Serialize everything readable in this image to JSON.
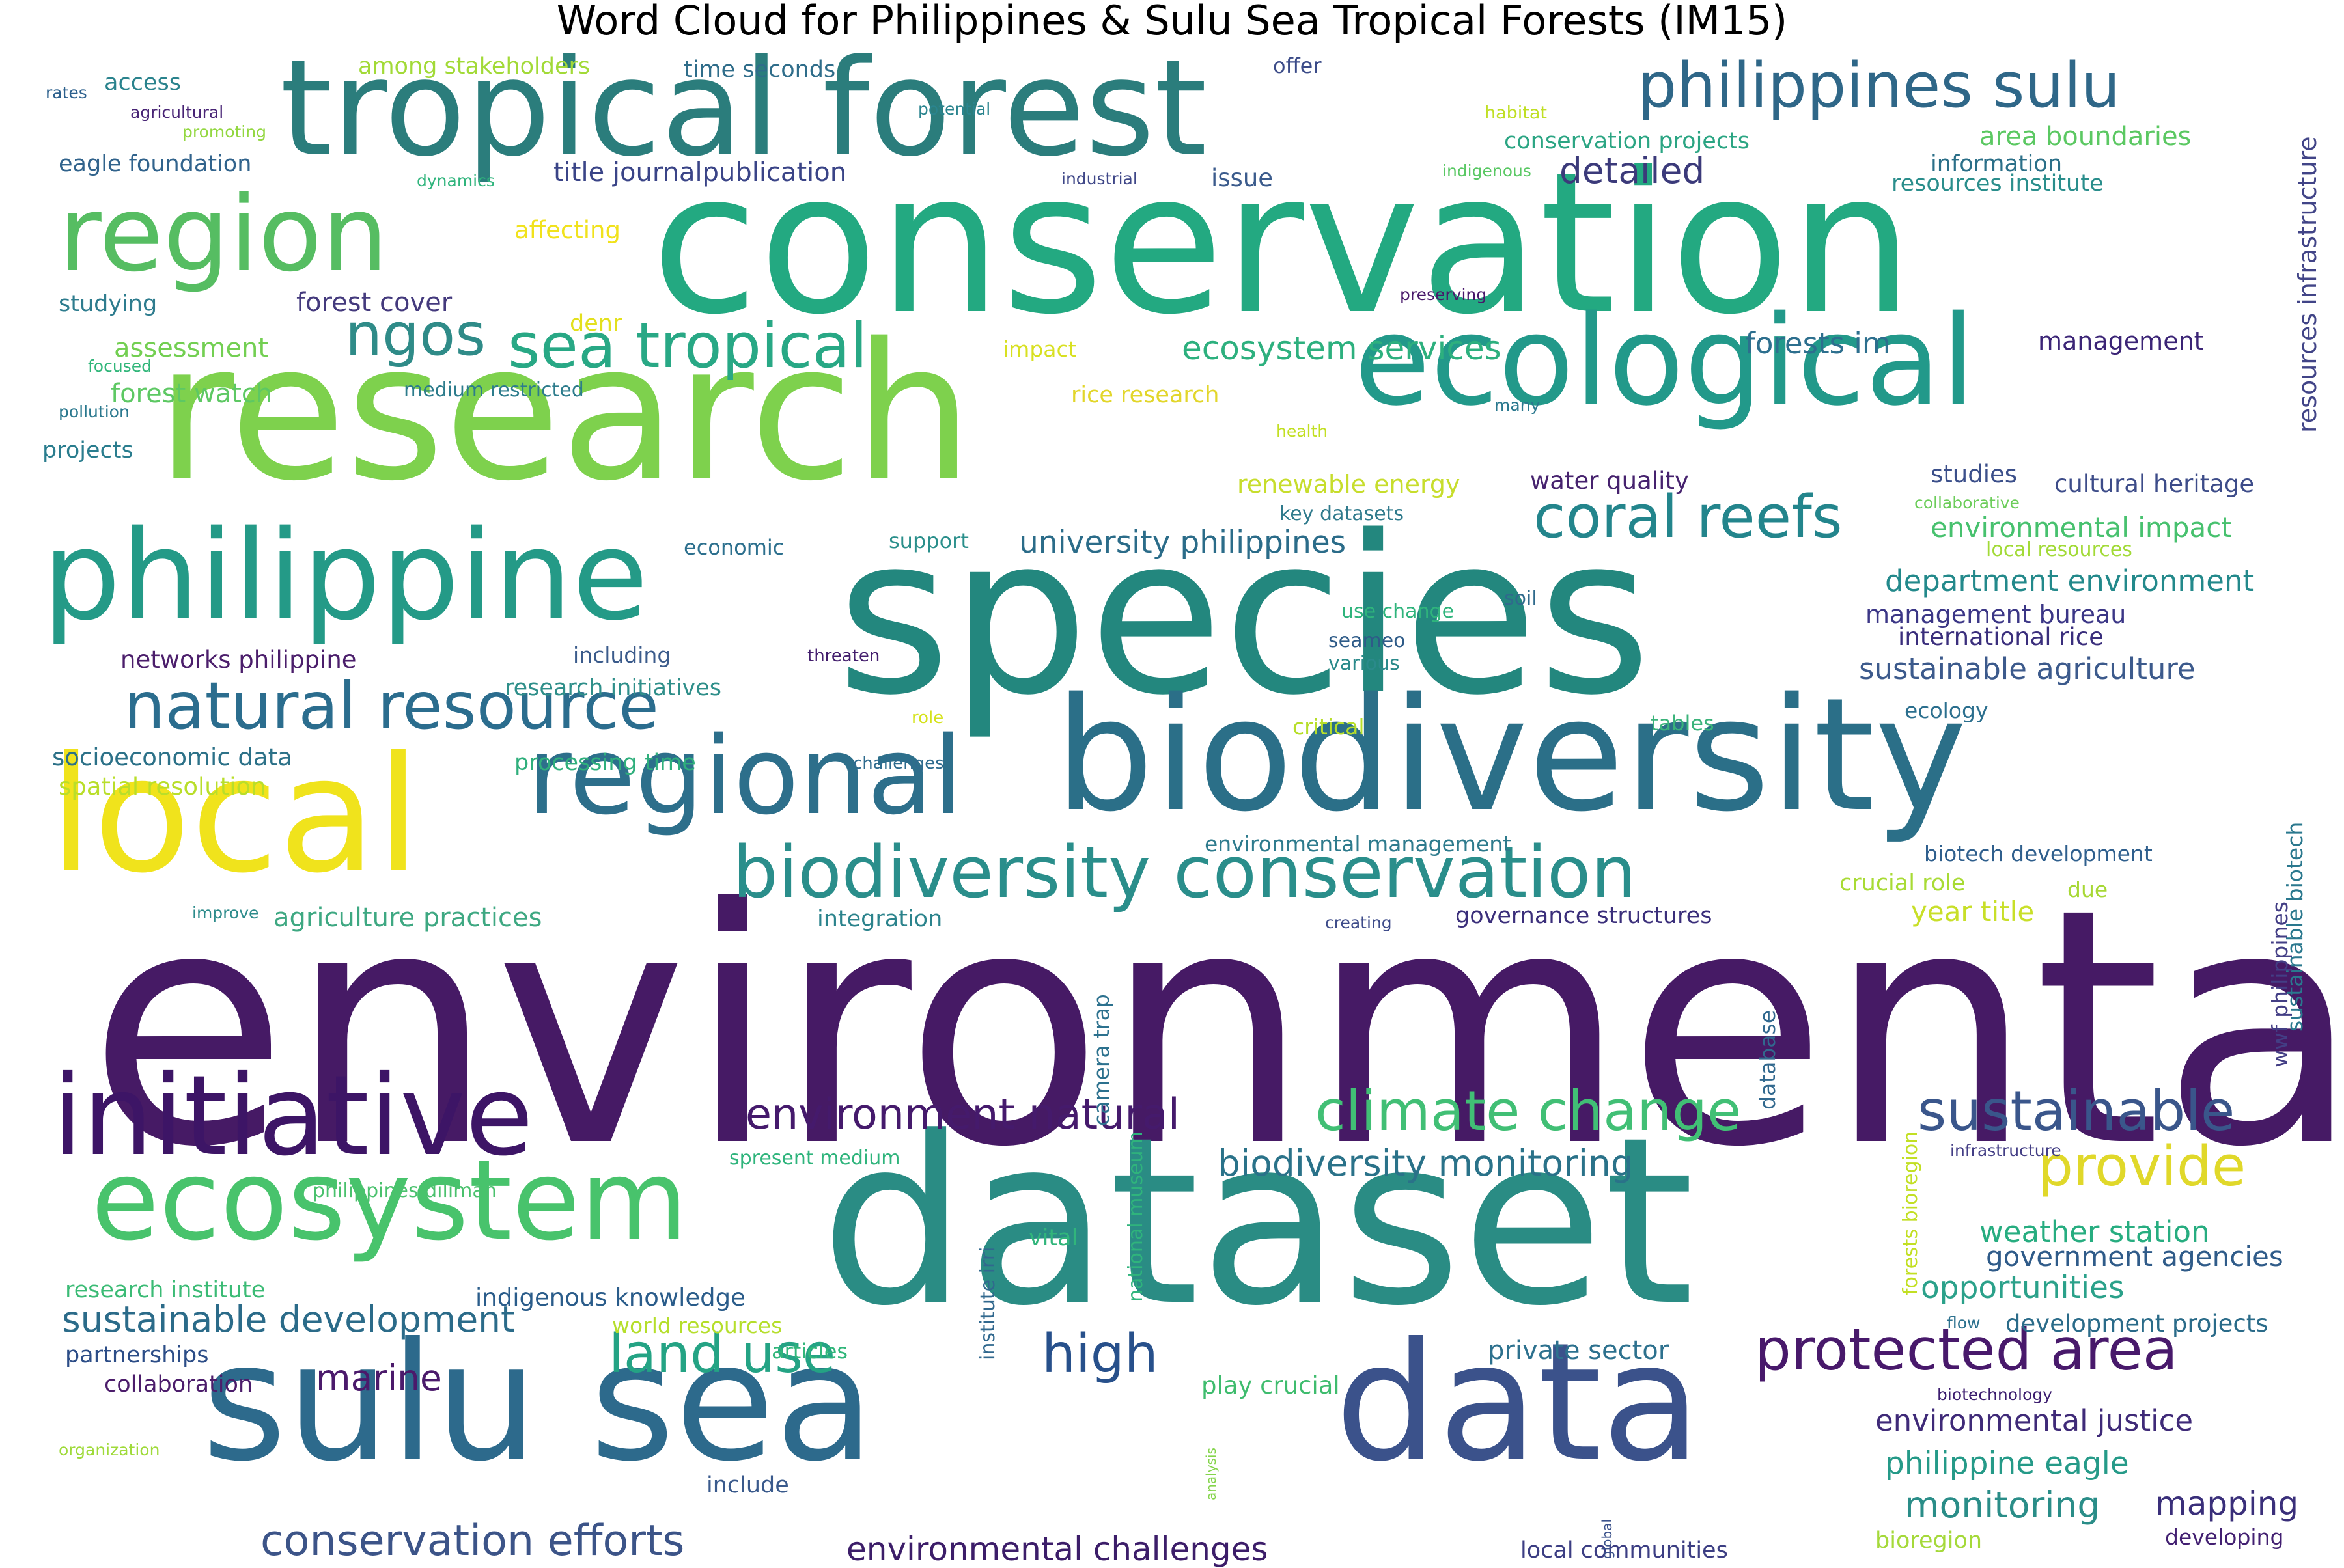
{
  "title": "Word Cloud for Philippines & Sulu Sea Tropical Forests (IM15)",
  "words": [
    {
      "text": "environmental",
      "color": "#461a65"
    },
    {
      "text": "species",
      "color": "#23877e"
    },
    {
      "text": "dataset",
      "color": "#2a8c84"
    },
    {
      "text": "conservation",
      "color": "#23a981"
    },
    {
      "text": "research",
      "color": "#7ed14d"
    },
    {
      "text": "sulu sea",
      "color": "#2d6a8c"
    },
    {
      "text": "data",
      "color": "#3b528b"
    },
    {
      "text": "tropical forest",
      "color": "#2b7d7c"
    },
    {
      "text": "local",
      "color": "#f0e31c"
    },
    {
      "text": "biodiversity",
      "color": "#2b6f88"
    },
    {
      "text": "ecological",
      "color": "#22998a"
    },
    {
      "text": "philippine",
      "color": "#249a87"
    },
    {
      "text": "initiative",
      "color": "#3d1566"
    },
    {
      "text": "ecosystem",
      "color": "#48c36c"
    },
    {
      "text": "region",
      "color": "#56bd62"
    },
    {
      "text": "regional",
      "color": "#2d6f8b"
    },
    {
      "text": "biodiversity conservation",
      "color": "#2a8e8b"
    },
    {
      "text": "natural resource",
      "color": "#2b6d8e"
    },
    {
      "text": "philippines sulu",
      "color": "#2f6788"
    },
    {
      "text": "sea tropical",
      "color": "#28a885"
    },
    {
      "text": "coral reefs",
      "color": "#23858c"
    },
    {
      "text": "ngos",
      "color": "#2f8b88"
    },
    {
      "text": "climate change",
      "color": "#41bf75"
    },
    {
      "text": "sustainable",
      "color": "#3a568b"
    },
    {
      "text": "protected area",
      "color": "#48196b"
    },
    {
      "text": "land use",
      "color": "#24a384"
    },
    {
      "text": "high",
      "color": "#27508b"
    },
    {
      "text": "provide",
      "color": "#e0d82a"
    },
    {
      "text": "environment natural",
      "color": "#451a6c"
    },
    {
      "text": "conservation efforts",
      "color": "#3c5488"
    },
    {
      "text": "sustainable development",
      "color": "#2b6b89"
    },
    {
      "text": "environmental challenges",
      "color": "#3c1d69"
    },
    {
      "text": "biodiversity monitoring",
      "color": "#2a7289"
    },
    {
      "text": "marine",
      "color": "#4b1a6b"
    },
    {
      "text": "monitoring",
      "color": "#2a8d88"
    },
    {
      "text": "mapping",
      "color": "#3a2f7a"
    },
    {
      "text": "ecosystem services",
      "color": "#2db07e"
    },
    {
      "text": "detailed",
      "color": "#3b3a7a"
    },
    {
      "text": "university philippines",
      "color": "#2b6c89"
    },
    {
      "text": "forests im",
      "color": "#2d6f8e"
    },
    {
      "text": "forest cover",
      "color": "#443a7d"
    },
    {
      "text": "weather station",
      "color": "#27ad80"
    },
    {
      "text": "opportunities",
      "color": "#2ba18a"
    },
    {
      "text": "government agencies",
      "color": "#2f5b89"
    },
    {
      "text": "environmental justice",
      "color": "#3f2a78"
    },
    {
      "text": "philippine eagle",
      "color": "#259a88"
    },
    {
      "text": "department environment",
      "color": "#23898b"
    },
    {
      "text": "sustainable agriculture",
      "color": "#3c5a8c"
    },
    {
      "text": "environmental impact",
      "color": "#47c16e"
    },
    {
      "text": "year title",
      "color": "#c8df28"
    },
    {
      "text": "area boundaries",
      "color": "#5bc862"
    },
    {
      "text": "conservation projects",
      "color": "#2ba583"
    },
    {
      "text": "resources institute",
      "color": "#2a8e8c"
    },
    {
      "text": "information",
      "color": "#2b6f88"
    },
    {
      "text": "title journalpublication",
      "color": "#3a4487"
    },
    {
      "text": "agriculture practices",
      "color": "#3ea882"
    },
    {
      "text": "management",
      "color": "#3b2476"
    },
    {
      "text": "management bureau",
      "color": "#3b3686"
    },
    {
      "text": "international rice",
      "color": "#3a2e7c"
    },
    {
      "text": "cultural heritage",
      "color": "#3d4c89"
    },
    {
      "text": "water quality",
      "color": "#46226e"
    },
    {
      "text": "studies",
      "color": "#3b4f8a"
    },
    {
      "text": "renewable energy",
      "color": "#c7dd2c"
    },
    {
      "text": "key datasets",
      "color": "#2f7a8c"
    },
    {
      "text": "private sector",
      "color": "#2d718e"
    },
    {
      "text": "play crucial",
      "color": "#3fbc6e"
    },
    {
      "text": "indigenous knowledge",
      "color": "#2a5c8a"
    },
    {
      "text": "world resources",
      "color": "#b5de2b"
    },
    {
      "text": "development projects",
      "color": "#2a6b89"
    },
    {
      "text": "networks philippine",
      "color": "#4b1e6b"
    },
    {
      "text": "research initiatives",
      "color": "#2f8f8a"
    },
    {
      "text": "socioeconomic data",
      "color": "#2c7188"
    },
    {
      "text": "spatial resolution",
      "color": "#b9de2a"
    },
    {
      "text": "processing time",
      "color": "#2faf7c"
    },
    {
      "text": "forest watch",
      "color": "#5dc863"
    },
    {
      "text": "assessment",
      "color": "#73cf52"
    },
    {
      "text": "medium restricted",
      "color": "#2d7c8c"
    },
    {
      "text": "rice research",
      "color": "#e2d62b"
    },
    {
      "text": "eagle foundation",
      "color": "#31638c"
    },
    {
      "text": "among stakeholders",
      "color": "#a2da37"
    },
    {
      "text": "time seconds",
      "color": "#2f6d8a"
    },
    {
      "text": "access",
      "color": "#2a838d"
    },
    {
      "text": "studying",
      "color": "#2e7c8e"
    },
    {
      "text": "projects",
      "color": "#2a7d8e"
    },
    {
      "text": "affecting",
      "color": "#f1e21c"
    },
    {
      "text": "governance structures",
      "color": "#3a2e7a"
    },
    {
      "text": "biotech development",
      "color": "#2f5f8d"
    },
    {
      "text": "crucial role",
      "color": "#a8db34"
    },
    {
      "text": "environmental management",
      "color": "#2e7b8d"
    },
    {
      "text": "integration",
      "color": "#2b838c"
    },
    {
      "text": "research institute",
      "color": "#3bbb75"
    },
    {
      "text": "partnerships",
      "color": "#2c4d87"
    },
    {
      "text": "collaboration",
      "color": "#4c1d6b"
    },
    {
      "text": "philippines diliman",
      "color": "#4ac16d"
    },
    {
      "text": "spresent medium",
      "color": "#2fb47c"
    },
    {
      "text": "vital",
      "color": "#31b57b"
    },
    {
      "text": "include",
      "color": "#3a5a8c"
    },
    {
      "text": "articles",
      "color": "#31b67a"
    },
    {
      "text": "bioregion",
      "color": "#a5d93a"
    },
    {
      "text": "developing",
      "color": "#421f71"
    },
    {
      "text": "local communities",
      "color": "#3c3e83"
    },
    {
      "text": "issue",
      "color": "#3b5b8c"
    },
    {
      "text": "offer",
      "color": "#3b4b88"
    },
    {
      "text": "denr",
      "color": "#e3e01d"
    },
    {
      "text": "impact",
      "color": "#d8e021"
    },
    {
      "text": "ecology",
      "color": "#2b6f8e"
    },
    {
      "text": "tables",
      "color": "#3ab37a"
    },
    {
      "text": "critical",
      "color": "#b7de2a"
    },
    {
      "text": "due",
      "color": "#a7d835"
    },
    {
      "text": "support",
      "color": "#2a8f8b"
    },
    {
      "text": "economic",
      "color": "#2d708e"
    },
    {
      "text": "including",
      "color": "#3b5b8b"
    },
    {
      "text": "use change",
      "color": "#2fb47c"
    },
    {
      "text": "seameo",
      "color": "#2e5b88"
    },
    {
      "text": "various",
      "color": "#2b8a8b"
    },
    {
      "text": "soil",
      "color": "#2f6a8c"
    },
    {
      "text": "threaten",
      "color": "#431e6d"
    },
    {
      "text": "role",
      "color": "#d5e21a"
    },
    {
      "text": "challenges",
      "color": "#2e6b8e"
    },
    {
      "text": "creating",
      "color": "#3e4c8a"
    },
    {
      "text": "improve",
      "color": "#2c8b8b"
    },
    {
      "text": "organization",
      "color": "#9fda3a"
    },
    {
      "text": "rates",
      "color": "#2c608d"
    },
    {
      "text": "agricultural",
      "color": "#482475"
    },
    {
      "text": "promoting",
      "color": "#93d741"
    },
    {
      "text": "dynamics",
      "color": "#2fb47c"
    },
    {
      "text": "potential",
      "color": "#2a848e"
    },
    {
      "text": "industrial",
      "color": "#3f4788"
    },
    {
      "text": "habitat",
      "color": "#c0df25"
    },
    {
      "text": "indigenous",
      "color": "#5ac864"
    },
    {
      "text": "preserving",
      "color": "#48186a"
    },
    {
      "text": "focused",
      "color": "#31b67a"
    },
    {
      "text": "pollution",
      "color": "#2a788e"
    },
    {
      "text": "health",
      "color": "#c2df23"
    },
    {
      "text": "many",
      "color": "#2a788e"
    },
    {
      "text": "collaborative",
      "color": "#6ccd5a"
    },
    {
      "text": "local resources",
      "color": "#a2da37"
    },
    {
      "text": "infrastructure",
      "color": "#433e85"
    },
    {
      "text": "flow",
      "color": "#2c718e"
    },
    {
      "text": "biotechnology",
      "color": "#3b1c6e"
    },
    {
      "text": "resources infrastructure",
      "color": "#414487"
    },
    {
      "text": "sustainable biotech",
      "color": "#2a788e"
    },
    {
      "text": "wwf philippines",
      "color": "#433e85"
    },
    {
      "text": "camera trap",
      "color": "#2c718e"
    },
    {
      "text": "database",
      "color": "#31688e"
    },
    {
      "text": "national museum",
      "color": "#2fb47c"
    },
    {
      "text": "institute irri",
      "color": "#31688e"
    },
    {
      "text": "forests bioregion",
      "color": "#c2df23"
    },
    {
      "text": "analysis",
      "color": "#84d44b"
    },
    {
      "text": "global",
      "color": "#3b528b"
    }
  ]
}
